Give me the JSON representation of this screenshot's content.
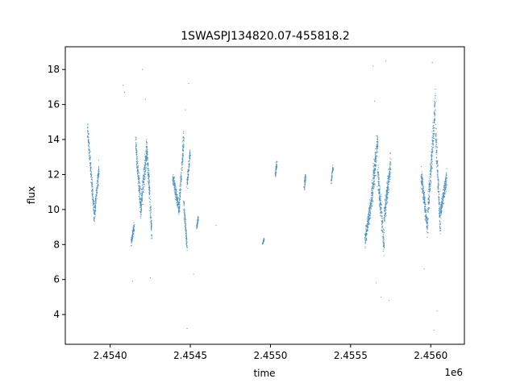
{
  "chart_data": {
    "type": "scatter",
    "title": "1SWASPJ134820.07-455818.2",
    "xlabel": "time",
    "ylabel": "flux",
    "x_offset_label": "1e6",
    "xlim": [
      2.45372,
      2.45621
    ],
    "ylim": [
      2.3,
      19.3
    ],
    "x_ticks": [
      2.454,
      2.4545,
      2.455,
      2.4555,
      2.456
    ],
    "x_tick_labels": [
      "2.4540",
      "2.4545",
      "2.4550",
      "2.4555",
      "2.4560"
    ],
    "y_ticks": [
      4,
      6,
      8,
      10,
      12,
      14,
      16,
      18
    ],
    "y_tick_labels": [
      "4",
      "6",
      "8",
      "10",
      "12",
      "14",
      "16",
      "18"
    ],
    "grid": false,
    "point_color": "#4a90c0",
    "clusters": [
      {
        "x_start": 2.45386,
        "x_end": 2.4539,
        "y_start": 14.5,
        "y_end": 9.8,
        "spread": 0.7
      },
      {
        "x_start": 2.4539,
        "x_end": 2.45393,
        "y_start": 9.6,
        "y_end": 12.3,
        "spread": 0.6
      },
      {
        "x_start": 2.45413,
        "x_end": 2.45415,
        "y_start": 8.1,
        "y_end": 9.0,
        "spread": 0.4
      },
      {
        "x_start": 2.45416,
        "x_end": 2.45419,
        "y_start": 13.8,
        "y_end": 10.2,
        "spread": 0.9
      },
      {
        "x_start": 2.45419,
        "x_end": 2.45423,
        "y_start": 10.0,
        "y_end": 13.6,
        "spread": 1.0
      },
      {
        "x_start": 2.45423,
        "x_end": 2.45426,
        "y_start": 13.5,
        "y_end": 8.6,
        "spread": 0.9
      },
      {
        "x_start": 2.45439,
        "x_end": 2.45443,
        "y_start": 11.9,
        "y_end": 10.0,
        "spread": 0.6
      },
      {
        "x_start": 2.45443,
        "x_end": 2.45446,
        "y_start": 10.1,
        "y_end": 14.2,
        "spread": 0.8
      },
      {
        "x_start": 2.45446,
        "x_end": 2.45448,
        "y_start": 10.2,
        "y_end": 7.9,
        "spread": 0.6
      },
      {
        "x_start": 2.45448,
        "x_end": 2.4545,
        "y_start": 11.5,
        "y_end": 13.3,
        "spread": 0.5
      },
      {
        "x_start": 2.45454,
        "x_end": 2.45455,
        "y_start": 9.0,
        "y_end": 9.6,
        "spread": 0.3
      },
      {
        "x_start": 2.45495,
        "x_end": 2.45496,
        "y_start": 8.0,
        "y_end": 8.3,
        "spread": 0.1
      },
      {
        "x_start": 2.45503,
        "x_end": 2.45504,
        "y_start": 12.0,
        "y_end": 12.6,
        "spread": 0.3
      },
      {
        "x_start": 2.45521,
        "x_end": 2.45522,
        "y_start": 11.2,
        "y_end": 11.9,
        "spread": 0.3
      },
      {
        "x_start": 2.45538,
        "x_end": 2.45539,
        "y_start": 11.6,
        "y_end": 12.4,
        "spread": 0.3
      },
      {
        "x_start": 2.45559,
        "x_end": 2.45563,
        "y_start": 8.3,
        "y_end": 10.5,
        "spread": 0.8
      },
      {
        "x_start": 2.45563,
        "x_end": 2.45567,
        "y_start": 10.6,
        "y_end": 14.0,
        "spread": 1.2
      },
      {
        "x_start": 2.45567,
        "x_end": 2.45571,
        "y_start": 12.0,
        "y_end": 7.9,
        "spread": 1.0
      },
      {
        "x_start": 2.45571,
        "x_end": 2.45575,
        "y_start": 9.6,
        "y_end": 12.6,
        "spread": 1.0
      },
      {
        "x_start": 2.45594,
        "x_end": 2.45598,
        "y_start": 12.0,
        "y_end": 9.0,
        "spread": 0.8
      },
      {
        "x_start": 2.45598,
        "x_end": 2.45603,
        "y_start": 9.5,
        "y_end": 16.2,
        "spread": 1.2
      },
      {
        "x_start": 2.45603,
        "x_end": 2.45606,
        "y_start": 14.5,
        "y_end": 9.0,
        "spread": 1.0
      },
      {
        "x_start": 2.45606,
        "x_end": 2.4561,
        "y_start": 9.8,
        "y_end": 11.9,
        "spread": 0.7
      }
    ],
    "outliers": [
      {
        "x": 2.45408,
        "y": 17.1
      },
      {
        "x": 2.45409,
        "y": 16.7
      },
      {
        "x": 2.45414,
        "y": 5.9
      },
      {
        "x": 2.4542,
        "y": 18.0
      },
      {
        "x": 2.45422,
        "y": 16.3
      },
      {
        "x": 2.45425,
        "y": 6.1
      },
      {
        "x": 2.45449,
        "y": 17.2
      },
      {
        "x": 2.45447,
        "y": 15.7
      },
      {
        "x": 2.45448,
        "y": 3.2
      },
      {
        "x": 2.45452,
        "y": 6.3
      },
      {
        "x": 2.45466,
        "y": 9.1
      },
      {
        "x": 2.45564,
        "y": 18.2
      },
      {
        "x": 2.45565,
        "y": 16.2
      },
      {
        "x": 2.45569,
        "y": 5.0
      },
      {
        "x": 2.45566,
        "y": 5.8
      },
      {
        "x": 2.45572,
        "y": 18.5
      },
      {
        "x": 2.45574,
        "y": 4.8
      },
      {
        "x": 2.45601,
        "y": 18.4
      },
      {
        "x": 2.45602,
        "y": 3.1
      },
      {
        "x": 2.45604,
        "y": 4.2
      },
      {
        "x": 2.45596,
        "y": 6.6
      }
    ]
  }
}
